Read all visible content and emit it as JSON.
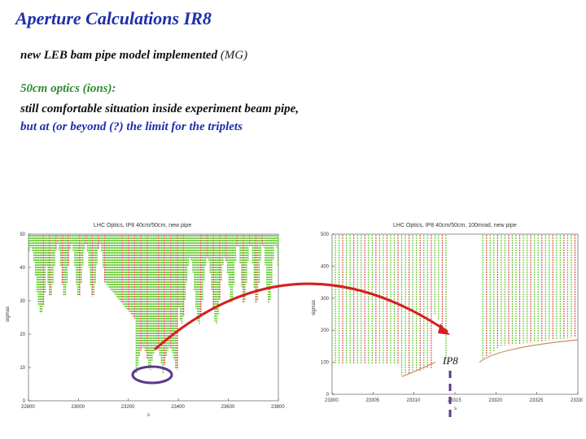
{
  "slide": {
    "title": "Aperture Calculations IR8",
    "line1_main": "new LEB bam pipe model implemented",
    "line1_tag": "(MG)",
    "line2": "50cm optics (ions):",
    "line3": "still comfortable situation inside experiment beam pipe,",
    "line4": "but at (or beyond (?) the limit for the triplets",
    "ip_label": "IP8"
  },
  "colors": {
    "title": "#1e2fa8",
    "green_text": "#2e8b2e",
    "arrow": "#d42020",
    "ellipse": "#5b3a8c",
    "bar_green": "#66cc33",
    "bar_red": "#dd5555"
  },
  "chart_data": [
    {
      "type": "bar",
      "title": "LHC Optics, IP8 40cm/50cm, new pipe",
      "xlabel": "s",
      "ylabel": "sigmas",
      "x_ticks": [
        "22800",
        "23000",
        "23200",
        "23400",
        "23600",
        "23800"
      ],
      "y_ticks": [
        "0",
        "10",
        "20",
        "30",
        "40",
        "50"
      ],
      "xlim": [
        22800,
        23800
      ],
      "ylim": [
        0,
        50
      ]
    },
    {
      "type": "bar",
      "title": "LHC Optics, IP8 40cm/50cm, 100mrad, new pipe",
      "xlabel": "s",
      "ylabel": "sigmas",
      "x_ticks": [
        "23300",
        "23305",
        "23310",
        "23315",
        "23320",
        "23325",
        "23330"
      ],
      "y_ticks": [
        "0",
        "100",
        "200",
        "300",
        "400",
        "500"
      ],
      "xlim": [
        23300,
        23330
      ],
      "ylim": [
        0,
        500
      ]
    }
  ]
}
